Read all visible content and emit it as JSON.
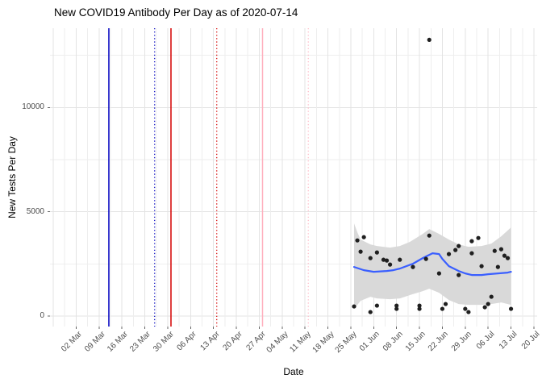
{
  "chart_data": {
    "type": "scatter",
    "title": "New COVID19 Antibody Per Day as of 2020-07-14",
    "xlabel": "Date",
    "ylabel": "New Tests Per Day",
    "x_domain": [
      "2020-02-23",
      "2020-07-21"
    ],
    "y_domain": [
      -500,
      13800
    ],
    "grid": true,
    "legend_position": "none",
    "x_ticks": [
      {
        "date": "2020-03-02",
        "label": "02 Mar"
      },
      {
        "date": "2020-03-09",
        "label": "09 Mar"
      },
      {
        "date": "2020-03-16",
        "label": "16 Mar"
      },
      {
        "date": "2020-03-23",
        "label": "23 Mar"
      },
      {
        "date": "2020-03-30",
        "label": "30 Mar"
      },
      {
        "date": "2020-04-06",
        "label": "06 Apr"
      },
      {
        "date": "2020-04-13",
        "label": "13 Apr"
      },
      {
        "date": "2020-04-20",
        "label": "20 Apr"
      },
      {
        "date": "2020-04-27",
        "label": "27 Apr"
      },
      {
        "date": "2020-05-04",
        "label": "04 May"
      },
      {
        "date": "2020-05-11",
        "label": "11 May"
      },
      {
        "date": "2020-05-18",
        "label": "18 May"
      },
      {
        "date": "2020-05-25",
        "label": "25 May"
      },
      {
        "date": "2020-06-01",
        "label": "01 Jun"
      },
      {
        "date": "2020-06-08",
        "label": "08 Jun"
      },
      {
        "date": "2020-06-15",
        "label": "15 Jun"
      },
      {
        "date": "2020-06-22",
        "label": "22 Jun"
      },
      {
        "date": "2020-06-29",
        "label": "29 Jun"
      },
      {
        "date": "2020-07-06",
        "label": "06 Jul"
      },
      {
        "date": "2020-07-13",
        "label": "13 Jul"
      },
      {
        "date": "2020-07-20",
        "label": "20 Jul"
      }
    ],
    "y_ticks": [
      {
        "value": 0,
        "label": "0"
      },
      {
        "value": 5000,
        "label": "5000"
      },
      {
        "value": 10000,
        "label": "10000"
      }
    ],
    "y_minor": [
      2500,
      7500,
      12500
    ],
    "x_minor_step_days": 3.5,
    "vlines": [
      {
        "date": "2020-03-12",
        "color": "#0000c0",
        "style": "solid",
        "name": "blue-solid-event-line"
      },
      {
        "date": "2020-03-26",
        "color": "#0000c0",
        "style": "dotted",
        "name": "blue-dotted-plus14-line"
      },
      {
        "date": "2020-03-31",
        "color": "#d40000",
        "style": "solid",
        "name": "red-solid-event-line"
      },
      {
        "date": "2020-04-14",
        "color": "#d40000",
        "style": "dotted",
        "name": "red-dotted-plus14-line"
      },
      {
        "date": "2020-04-28",
        "color": "#ffafbd",
        "style": "solid",
        "name": "pink-solid-event-line"
      },
      {
        "date": "2020-05-12",
        "color": "#ffb9c6",
        "style": "dotted",
        "name": "pink-dotted-plus14-line"
      }
    ],
    "series": [
      {
        "name": "new-antibody-tests-per-day",
        "type": "scatter",
        "points": [
          [
            "2020-05-26",
            463
          ],
          [
            "2020-05-27",
            3629
          ],
          [
            "2020-05-28",
            3089
          ],
          [
            "2020-05-29",
            3784
          ],
          [
            "2020-05-31",
            2780
          ],
          [
            "2020-05-31",
            193
          ],
          [
            "2020-06-02",
            3050
          ],
          [
            "2020-06-02",
            502
          ],
          [
            "2020-06-04",
            2702
          ],
          [
            "2020-06-05",
            2664
          ],
          [
            "2020-06-06",
            2471
          ],
          [
            "2020-06-08",
            502
          ],
          [
            "2020-06-08",
            347
          ],
          [
            "2020-06-09",
            2702
          ],
          [
            "2020-06-13",
            2355
          ],
          [
            "2020-06-15",
            502
          ],
          [
            "2020-06-15",
            347
          ],
          [
            "2020-06-17",
            2741
          ],
          [
            "2020-06-18",
            3861
          ],
          [
            "2020-06-18",
            13243
          ],
          [
            "2020-06-21",
            2046
          ],
          [
            "2020-06-22",
            347
          ],
          [
            "2020-06-23",
            579
          ],
          [
            "2020-06-24",
            2973
          ],
          [
            "2020-06-26",
            3166
          ],
          [
            "2020-06-27",
            3359
          ],
          [
            "2020-06-27",
            1969
          ],
          [
            "2020-06-29",
            347
          ],
          [
            "2020-06-30",
            193
          ],
          [
            "2020-07-01",
            3591
          ],
          [
            "2020-07-01",
            3012
          ],
          [
            "2020-07-03",
            3745
          ],
          [
            "2020-07-04",
            2394
          ],
          [
            "2020-07-05",
            425
          ],
          [
            "2020-07-06",
            579
          ],
          [
            "2020-07-07",
            927
          ],
          [
            "2020-07-08",
            3127
          ],
          [
            "2020-07-09",
            2355
          ],
          [
            "2020-07-10",
            3205
          ],
          [
            "2020-07-11",
            2896
          ],
          [
            "2020-07-12",
            2780
          ],
          [
            "2020-07-13",
            347
          ]
        ]
      },
      {
        "name": "loess-smooth",
        "type": "line",
        "points": [
          [
            "2020-05-26",
            2355
          ],
          [
            "2020-05-29",
            2201
          ],
          [
            "2020-06-01",
            2124
          ],
          [
            "2020-06-05",
            2162
          ],
          [
            "2020-06-07",
            2201
          ],
          [
            "2020-06-09",
            2278
          ],
          [
            "2020-06-13",
            2510
          ],
          [
            "2020-06-16",
            2780
          ],
          [
            "2020-06-19",
            3012
          ],
          [
            "2020-06-21",
            2973
          ],
          [
            "2020-06-22",
            2741
          ],
          [
            "2020-06-24",
            2394
          ],
          [
            "2020-06-27",
            2162
          ],
          [
            "2020-06-29",
            2046
          ],
          [
            "2020-07-01",
            1969
          ],
          [
            "2020-07-04",
            1969
          ],
          [
            "2020-07-06",
            2008
          ],
          [
            "2020-07-09",
            2046
          ],
          [
            "2020-07-12",
            2085
          ],
          [
            "2020-07-13",
            2124
          ]
        ]
      },
      {
        "name": "confidence-ribbon",
        "type": "ribbon",
        "upper": [
          [
            "2020-05-26",
            4440
          ],
          [
            "2020-05-27",
            4015
          ],
          [
            "2020-05-28",
            3668
          ],
          [
            "2020-05-31",
            3436
          ],
          [
            "2020-06-02",
            3359
          ],
          [
            "2020-06-06",
            3282
          ],
          [
            "2020-06-09",
            3359
          ],
          [
            "2020-06-12",
            3552
          ],
          [
            "2020-06-16",
            3938
          ],
          [
            "2020-06-18",
            4170
          ],
          [
            "2020-06-21",
            3938
          ],
          [
            "2020-06-24",
            3668
          ],
          [
            "2020-06-27",
            3436
          ],
          [
            "2020-06-30",
            3320
          ],
          [
            "2020-07-04",
            3359
          ],
          [
            "2020-07-07",
            3475
          ],
          [
            "2020-07-10",
            3822
          ],
          [
            "2020-07-13",
            4247
          ]
        ],
        "lower": [
          [
            "2020-05-26",
            347
          ],
          [
            "2020-05-27",
            541
          ],
          [
            "2020-05-28",
            734
          ],
          [
            "2020-05-31",
            927
          ],
          [
            "2020-06-02",
            849
          ],
          [
            "2020-06-06",
            811
          ],
          [
            "2020-06-09",
            849
          ],
          [
            "2020-06-12",
            1004
          ],
          [
            "2020-06-16",
            1197
          ],
          [
            "2020-06-18",
            1313
          ],
          [
            "2020-06-21",
            1120
          ],
          [
            "2020-06-24",
            772
          ],
          [
            "2020-06-27",
            579
          ],
          [
            "2020-06-30",
            541
          ],
          [
            "2020-07-04",
            541
          ],
          [
            "2020-07-07",
            579
          ],
          [
            "2020-07-10",
            656
          ],
          [
            "2020-07-13",
            541
          ]
        ]
      }
    ],
    "colors": {
      "point": "#1f1f1f",
      "smooth_line": "#3a5fff",
      "ribbon": "#d9d9d9",
      "grid_major": "#e3e3e3",
      "grid_minor": "#eeeeee",
      "axis_text": "#4d4d4d",
      "tick_mark": "#666666",
      "background": "#ffffff"
    }
  }
}
